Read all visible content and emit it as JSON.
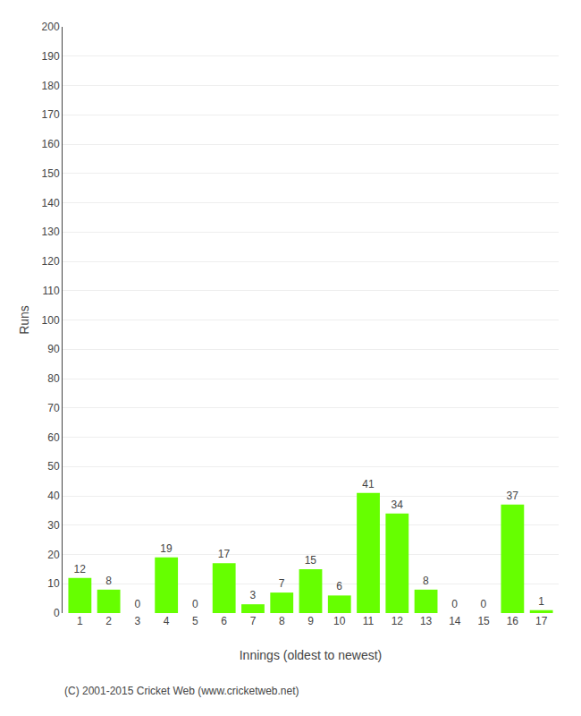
{
  "chart_data": {
    "type": "bar",
    "xlabel": "Innings (oldest to newest)",
    "ylabel": "Runs",
    "categories": [
      "1",
      "2",
      "3",
      "4",
      "5",
      "6",
      "7",
      "8",
      "9",
      "10",
      "11",
      "12",
      "13",
      "14",
      "15",
      "16",
      "17"
    ],
    "values": [
      12,
      8,
      0,
      19,
      0,
      17,
      3,
      7,
      15,
      6,
      41,
      34,
      8,
      0,
      0,
      37,
      1
    ],
    "color": "#66ff00",
    "ylim": [
      0,
      200
    ],
    "yticks": [
      0,
      10,
      20,
      30,
      40,
      50,
      60,
      70,
      80,
      90,
      100,
      110,
      120,
      130,
      140,
      150,
      160,
      170,
      180,
      190,
      200
    ],
    "grid": true,
    "data_labels": true,
    "annotations": [
      "(C) 2001-2015 Cricket Web (www.cricketweb.net)"
    ]
  }
}
